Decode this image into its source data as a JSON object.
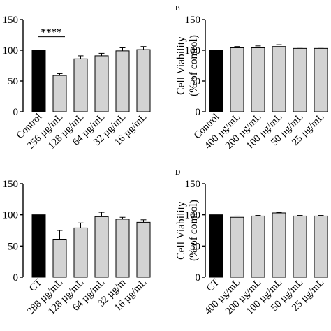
{
  "chart_data": [
    {
      "type": "bar",
      "panel": "A",
      "panel_label_visible": false,
      "categories": [
        "Control",
        "256 µg/mL",
        "128 µg/mL",
        "64 µg/mL",
        "32 µg/mL",
        "16 µg/mL"
      ],
      "values": [
        100,
        59,
        86,
        91,
        99,
        101
      ],
      "errors": [
        0,
        3,
        5,
        4,
        5,
        5
      ],
      "ylim": [
        0,
        150
      ],
      "yticks": [
        0,
        50,
        100,
        150
      ],
      "ylabel": "",
      "xlabel": "",
      "bar_colors": [
        "#000000",
        "#d3d3d3",
        "#d3d3d3",
        "#d3d3d3",
        "#d3d3d3",
        "#d3d3d3"
      ],
      "annotation": {
        "text": "****",
        "from": 0,
        "to": 1
      }
    },
    {
      "type": "bar",
      "panel": "B",
      "panel_label_visible": true,
      "categories": [
        "Control",
        "400 µg/mL",
        "200 µg/mL",
        "100 µg/mL",
        "50 µg/mL",
        "25 µg/mL"
      ],
      "values": [
        100,
        104,
        104,
        106,
        103,
        103
      ],
      "errors": [
        0,
        2,
        3,
        3,
        2,
        2
      ],
      "ylim": [
        0,
        150
      ],
      "yticks": [
        0,
        50,
        100,
        150
      ],
      "ylabel": [
        "Cell Viability",
        "(% of control)"
      ],
      "xlabel": "",
      "bar_colors": [
        "#000000",
        "#d3d3d3",
        "#d3d3d3",
        "#d3d3d3",
        "#d3d3d3",
        "#d3d3d3"
      ]
    },
    {
      "type": "bar",
      "panel": "C",
      "panel_label_visible": false,
      "categories": [
        "CT",
        "288 µg/mL",
        "128 µg/mL",
        "64 µg/mL",
        "32 µg/m",
        "16 µg/mL"
      ],
      "values": [
        100,
        61,
        79,
        97,
        93,
        88
      ],
      "errors": [
        0,
        14,
        8,
        7,
        3,
        4
      ],
      "ylim": [
        0,
        150
      ],
      "yticks": [
        0,
        50,
        100,
        150
      ],
      "ylabel": "",
      "xlabel": "",
      "bar_colors": [
        "#000000",
        "#d3d3d3",
        "#d3d3d3",
        "#d3d3d3",
        "#d3d3d3",
        "#d3d3d3"
      ]
    },
    {
      "type": "bar",
      "panel": "D",
      "panel_label_visible": true,
      "categories": [
        "CT",
        "400 µg/mL",
        "200 µg/mL",
        "100 µg/mL",
        "50 µg/mL",
        "25 µg/mL"
      ],
      "values": [
        100,
        96,
        98,
        103,
        98,
        98
      ],
      "errors": [
        0,
        2,
        1,
        1,
        1,
        1
      ],
      "ylim": [
        0,
        150
      ],
      "yticks": [
        0,
        50,
        100,
        150
      ],
      "ylabel": [
        "Cell Viability",
        "(% of control)"
      ],
      "xlabel": "",
      "bar_colors": [
        "#000000",
        "#d3d3d3",
        "#d3d3d3",
        "#d3d3d3",
        "#d3d3d3",
        "#d3d3d3"
      ]
    }
  ]
}
